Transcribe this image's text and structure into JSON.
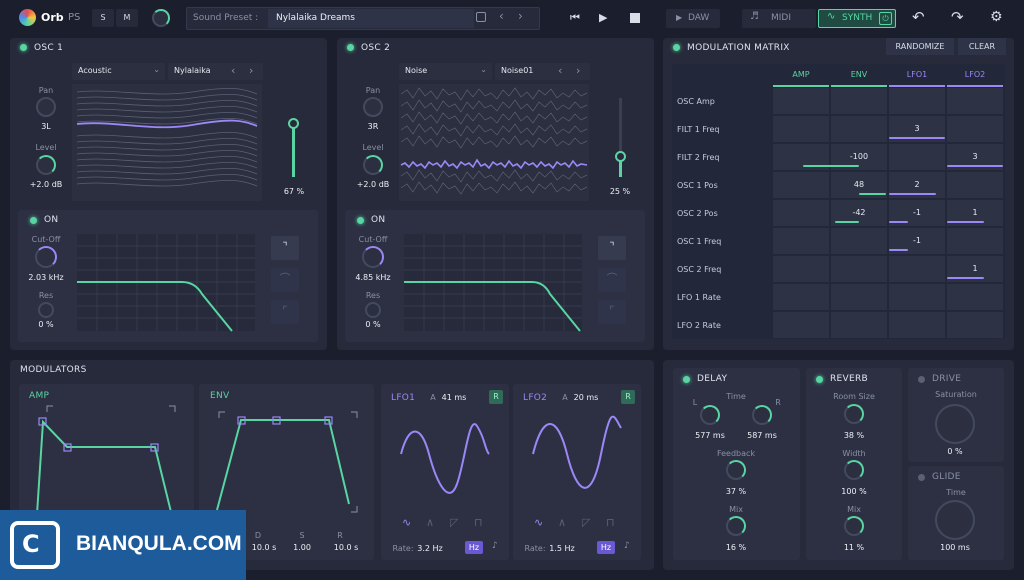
{
  "topbar": {
    "logo": "Orb",
    "logo_sub": "PS",
    "solo": "S",
    "mute": "M",
    "preset_label": "Sound Preset :",
    "preset_name": "Nylalaika Dreams",
    "daw": "DAW",
    "midi": "MIDI",
    "synth": "SYNTH"
  },
  "osc1": {
    "title": "OSC 1",
    "type": "Acoustic",
    "wave": "Nylalaika",
    "pan_label": "Pan",
    "pan": "3L",
    "level_label": "Level",
    "level": "+2.0 dB",
    "mix": "67 %",
    "filter_on": "ON",
    "cutoff_label": "Cut-Off",
    "cutoff": "2.03 kHz",
    "res_label": "Res",
    "res": "0 %"
  },
  "osc2": {
    "title": "OSC 2",
    "type": "Noise",
    "wave": "Noise01",
    "pan_label": "Pan",
    "pan": "3R",
    "level_label": "Level",
    "level": "+2.0 dB",
    "mix": "25 %",
    "filter_on": "ON",
    "cutoff_label": "Cut-Off",
    "cutoff": "4.85 kHz",
    "res_label": "Res",
    "res": "0 %"
  },
  "mod_matrix": {
    "title": "MODULATION MATRIX",
    "randomize": "RANDOMIZE",
    "clear": "CLEAR",
    "columns": [
      "AMP",
      "ENV",
      "LFO1",
      "LFO2"
    ],
    "rows": [
      "OSC Amp",
      "FILT 1 Freq",
      "FILT 2 Freq",
      "OSC 1 Pos",
      "OSC 2 Pos",
      "OSC 1 Freq",
      "OSC 2 Freq",
      "LFO 1 Rate",
      "LFO 2 Rate"
    ],
    "values": [
      [
        "",
        "",
        "",
        ""
      ],
      [
        "",
        "",
        "3",
        ""
      ],
      [
        "",
        "-100",
        "",
        "3"
      ],
      [
        "",
        "48",
        "2",
        ""
      ],
      [
        "",
        "-42",
        "-1",
        "1"
      ],
      [
        "",
        "",
        "-1",
        ""
      ],
      [
        "",
        "",
        "",
        "1"
      ],
      [
        "",
        "",
        "",
        ""
      ],
      [
        "",
        "",
        "",
        ""
      ]
    ]
  },
  "modulators": {
    "title": "MODULATORS",
    "amp": "AMP",
    "env": "ENV",
    "env_d_label": "D",
    "env_d": "10.0 s",
    "env_s_label": "S",
    "env_s": "1.00",
    "env_r_label": "R",
    "env_r": "10.0 s",
    "lfo1": {
      "title": "LFO1",
      "attack_label": "A",
      "attack": "41 ms",
      "retrig": "R",
      "rate_label": "Rate:",
      "rate": "3.2 Hz",
      "unit": "Hz"
    },
    "lfo2": {
      "title": "LFO2",
      "attack_label": "A",
      "attack": "20 ms",
      "retrig": "R",
      "rate_label": "Rate:",
      "rate": "1.5 Hz",
      "unit": "Hz"
    }
  },
  "delay": {
    "title": "DELAY",
    "time_label": "Time",
    "l_label": "L",
    "r_label": "R",
    "l": "577 ms",
    "r": "587 ms",
    "feedback_label": "Feedback",
    "feedback": "37 %",
    "mix_label": "Mix",
    "mix": "16 %"
  },
  "reverb": {
    "title": "REVERB",
    "room_label": "Room Size",
    "room": "38 %",
    "width_label": "Width",
    "width": "100 %",
    "mix_label": "Mix",
    "mix": "11 %"
  },
  "drive": {
    "title": "DRIVE",
    "sat_label": "Saturation",
    "sat": "0 %"
  },
  "glide": {
    "title": "GLIDE",
    "time_label": "Time",
    "time": "100 ms"
  },
  "watermark": "BIANQULA.COM",
  "colors": {
    "accent_green": "#58d5a2",
    "accent_purple": "#9b87f5",
    "bg": "#1b1e2c",
    "panel": "#262a3a"
  }
}
